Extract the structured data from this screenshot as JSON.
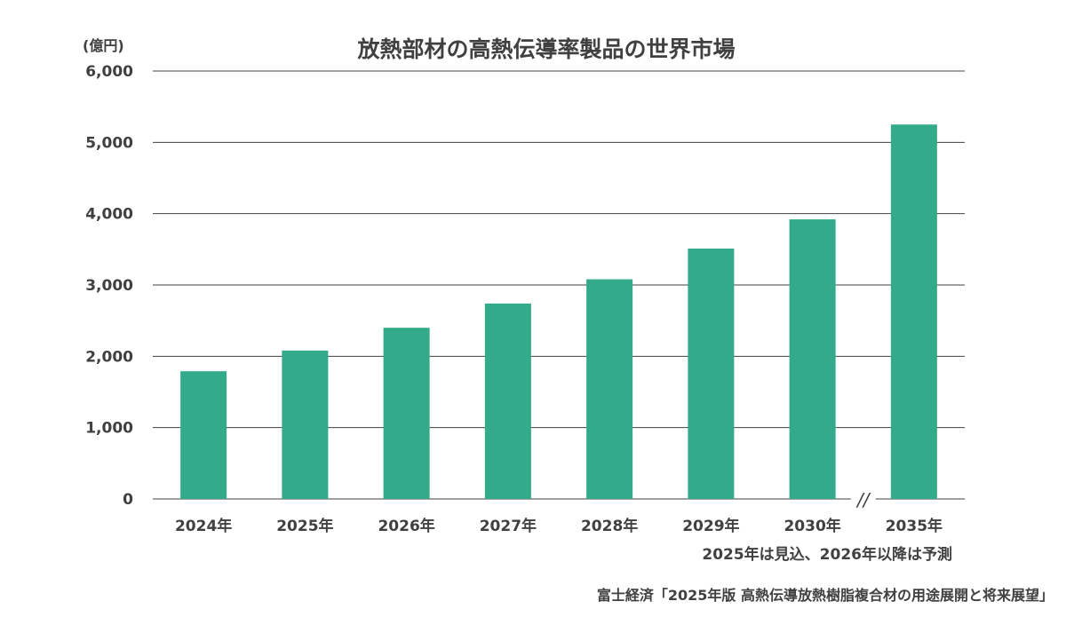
{
  "chart_data": {
    "type": "bar",
    "title": "放熱部材の高熱伝導率製品の世界市場",
    "ylabel": "(億円)",
    "xlabel": "",
    "categories": [
      "2024年",
      "2025年",
      "2026年",
      "2027年",
      "2028年",
      "2029年",
      "2030年",
      "2035年"
    ],
    "values": [
      1790,
      2080,
      2400,
      2740,
      3080,
      3510,
      3920,
      5250
    ],
    "ylim": [
      0,
      6000
    ],
    "yticks": [
      "0",
      "1,000",
      "2,000",
      "3,000",
      "4,000",
      "5,000",
      "6,000"
    ],
    "axis_break_symbol": "//",
    "grid": true,
    "legend": "none",
    "bar_color": "#33AB8A",
    "grid_color": "#404040"
  },
  "note": "2025年は見込、2026年以降は予測",
  "source": "富士経済「2025年版 高熱伝導放熱樹脂複合材の用途展開と将来展望」"
}
